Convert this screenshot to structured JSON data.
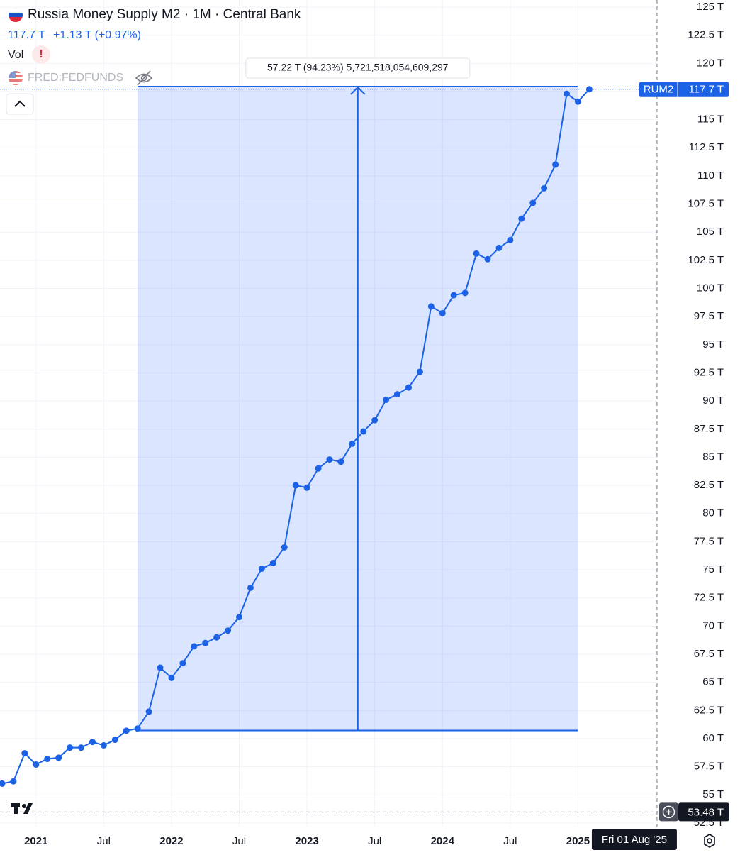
{
  "chart_data": {
    "type": "line",
    "title": "Russia Money Supply M2 · 1M · Central Bank",
    "legend_value": "117.7 T",
    "legend_change": "+1.13 T (+0.97%)",
    "vol_label": "Vol",
    "alert": "!",
    "compare_symbol": "FRED:FEDFUNDS",
    "x": [
      "2020-10",
      "2020-11",
      "2020-12",
      "2021-01",
      "2021-02",
      "2021-03",
      "2021-04",
      "2021-05",
      "2021-06",
      "2021-07",
      "2021-08",
      "2021-09",
      "2021-10",
      "2021-11",
      "2021-12",
      "2022-01",
      "2022-02",
      "2022-03",
      "2022-04",
      "2022-05",
      "2022-06",
      "2022-07",
      "2022-08",
      "2022-09",
      "2022-10",
      "2022-11",
      "2022-12",
      "2023-01",
      "2023-02",
      "2023-03",
      "2023-04",
      "2023-05",
      "2023-06",
      "2023-07",
      "2023-08",
      "2023-09",
      "2023-10",
      "2023-11",
      "2023-12",
      "2024-01",
      "2024-02",
      "2024-03",
      "2024-04",
      "2024-05",
      "2024-06",
      "2024-07",
      "2024-08",
      "2024-09",
      "2024-10",
      "2024-11",
      "2024-12",
      "2025-01",
      "2025-02"
    ],
    "series": [
      {
        "name": "RUM2",
        "color": "#1c62e6",
        "values": [
          56.0,
          56.2,
          58.7,
          57.7,
          58.2,
          58.3,
          59.2,
          59.2,
          59.7,
          59.4,
          59.9,
          60.7,
          60.9,
          62.4,
          66.3,
          65.4,
          66.7,
          68.2,
          68.5,
          69.0,
          69.6,
          70.8,
          73.4,
          75.1,
          75.6,
          77.0,
          82.5,
          82.3,
          84.0,
          84.8,
          84.6,
          86.2,
          87.3,
          88.3,
          90.1,
          90.6,
          91.2,
          92.6,
          98.4,
          97.8,
          99.4,
          99.6,
          103.1,
          102.6,
          103.6,
          104.3,
          106.2,
          107.6,
          108.9,
          111.0,
          117.3,
          116.6,
          117.7
        ]
      }
    ],
    "last_value_label": "117.7 T",
    "xticks": [
      {
        "value": "2021-01",
        "label": "2021"
      },
      {
        "value": "2021-07",
        "label": "Jul"
      },
      {
        "value": "2022-01",
        "label": "2022"
      },
      {
        "value": "2022-07",
        "label": "Jul"
      },
      {
        "value": "2023-01",
        "label": "2023"
      },
      {
        "value": "2023-07",
        "label": "Jul"
      },
      {
        "value": "2024-01",
        "label": "2024"
      },
      {
        "value": "2024-07",
        "label": "Jul"
      },
      {
        "value": "2025-01",
        "label": "2025"
      }
    ],
    "ylim": [
      52.18,
      125.63
    ],
    "yticks": [
      {
        "value": 52.5,
        "label": "52.5 T"
      },
      {
        "value": 55,
        "label": "55 T"
      },
      {
        "value": 57.5,
        "label": "57.5 T"
      },
      {
        "value": 60,
        "label": "60 T"
      },
      {
        "value": 62.5,
        "label": "62.5 T"
      },
      {
        "value": 65,
        "label": "65 T"
      },
      {
        "value": 67.5,
        "label": "67.5 T"
      },
      {
        "value": 70,
        "label": "70 T"
      },
      {
        "value": 72.5,
        "label": "72.5 T"
      },
      {
        "value": 75,
        "label": "75 T"
      },
      {
        "value": 77.5,
        "label": "77.5 T"
      },
      {
        "value": 80,
        "label": "80 T"
      },
      {
        "value": 82.5,
        "label": "82.5 T"
      },
      {
        "value": 85,
        "label": "85 T"
      },
      {
        "value": 87.5,
        "label": "87.5 T"
      },
      {
        "value": 90,
        "label": "90 T"
      },
      {
        "value": 92.5,
        "label": "92.5 T"
      },
      {
        "value": 95,
        "label": "95 T"
      },
      {
        "value": 97.5,
        "label": "97.5 T"
      },
      {
        "value": 100,
        "label": "100 T"
      },
      {
        "value": 102.5,
        "label": "102.5 T"
      },
      {
        "value": 105,
        "label": "105 T"
      },
      {
        "value": 107.5,
        "label": "107.5 T"
      },
      {
        "value": 110,
        "label": "110 T"
      },
      {
        "value": 112.5,
        "label": "112.5 T"
      },
      {
        "value": 115,
        "label": "115 T"
      },
      {
        "value": 117.5,
        "label": "117.5 T"
      },
      {
        "value": 120,
        "label": "120 T"
      },
      {
        "value": 122.5,
        "label": "122.5 T"
      },
      {
        "value": 125,
        "label": "125 T"
      }
    ],
    "grid": true,
    "measure": {
      "label": "57.22 T (94.23%) 5,721,518,054,609,297",
      "from": 60.72,
      "to": 117.94
    },
    "crosshair": {
      "value": 53.48,
      "label": "53.48 T",
      "date_label": "Fri 01 Aug '25"
    }
  }
}
